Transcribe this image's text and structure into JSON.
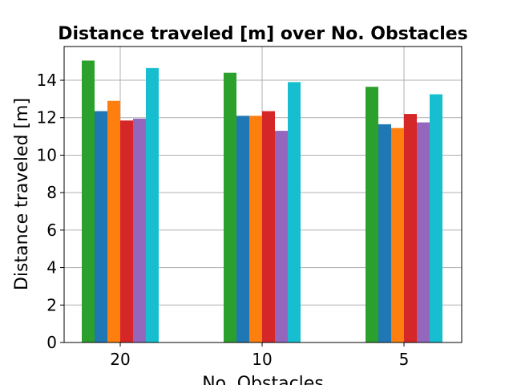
{
  "chart_data": {
    "type": "bar",
    "title": "Distance traveled [m] over No. Obstacles",
    "xlabel": "No. Obstacles",
    "ylabel": "Distance traveled [m]",
    "categories": [
      "20",
      "10",
      "5"
    ],
    "ylim": [
      0,
      15.8
    ],
    "yticks": [
      0,
      2,
      4,
      6,
      8,
      10,
      12,
      14
    ],
    "grid": true,
    "series": [
      {
        "color": "#2ca02c",
        "values": [
          15.05,
          14.4,
          13.65
        ]
      },
      {
        "color": "#1f77b4",
        "values": [
          12.35,
          12.1,
          11.65
        ]
      },
      {
        "color": "#ff7f0e",
        "values": [
          12.9,
          12.1,
          11.45
        ]
      },
      {
        "color": "#d62728",
        "values": [
          11.85,
          12.35,
          12.2
        ]
      },
      {
        "color": "#9467bd",
        "values": [
          11.95,
          11.3,
          11.75
        ]
      },
      {
        "color": "#17becf",
        "values": [
          14.65,
          13.9,
          13.25
        ]
      }
    ]
  }
}
